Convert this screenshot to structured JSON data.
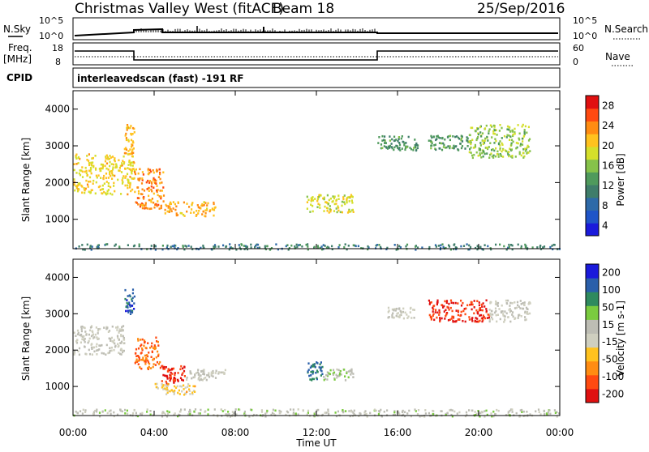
{
  "header": {
    "station": "Christmas Valley West (fitACF)",
    "beam": "Beam 18",
    "date": "25/Sep/2016"
  },
  "noise_panel": {
    "left_label": "N.Sky",
    "right_label": "N.Search",
    "left_ticks": [
      "10^5",
      "10^0"
    ],
    "right_ticks": [
      "10^5",
      "10^0"
    ]
  },
  "freq_panel": {
    "left_label_1": "Freq.",
    "left_label_2": "[MHz]",
    "right_label": "Nave",
    "left_ticks": [
      "18",
      "8"
    ],
    "right_ticks": [
      "60",
      "0"
    ],
    "cpid_label": "CPID",
    "cpid_text": "interleavedscan (fast) -191 RF"
  },
  "colors": {
    "power_scale": [
      "#1a1adb",
      "#1f55c8",
      "#2e6aa8",
      "#3f7d6a",
      "#4f9a5c",
      "#86c24a",
      "#d5df2b",
      "#ffc21e",
      "#ff8c12",
      "#ff4a10",
      "#e01010"
    ],
    "velocity_scale": [
      "#e01010",
      "#ff4a10",
      "#ff8c12",
      "#ffc21e",
      "#cfcfbf",
      "#bdbdb4",
      "#7acb3f",
      "#2f8a5f",
      "#2a5faa",
      "#1a1adb"
    ]
  },
  "chart_data": [
    {
      "type": "heatmap",
      "panel": "power",
      "ylabel": "Slant Range [km]",
      "xlabel": "Time UT",
      "x_ticks": [
        "00:00",
        "04:00",
        "08:00",
        "12:00",
        "16:00",
        "20:00",
        "00:00"
      ],
      "y_ticks": [
        "1000",
        "2000",
        "3000",
        "4000"
      ],
      "ylim": [
        200,
        4500
      ],
      "xlim": [
        0,
        24
      ],
      "colorbar_label": "Power [dB]",
      "colorbar_ticks": [
        "28",
        "24",
        "20",
        "16",
        "12",
        "8",
        "4"
      ],
      "colorbar_range": [
        0,
        31
      ],
      "regions": [
        {
          "t0": 0.0,
          "t1": 3.0,
          "r0": 1700,
          "r1": 2800,
          "level": 20
        },
        {
          "t0": 2.5,
          "t1": 3.0,
          "r0": 2800,
          "r1": 3600,
          "level": 22
        },
        {
          "t0": 3.0,
          "t1": 4.5,
          "r0": 1300,
          "r1": 2400,
          "level": 24
        },
        {
          "t0": 4.5,
          "t1": 7.0,
          "r0": 1100,
          "r1": 1500,
          "level": 22
        },
        {
          "t0": 11.5,
          "t1": 13.8,
          "r0": 1200,
          "r1": 1700,
          "level": 18
        },
        {
          "t0": 15.0,
          "t1": 17.0,
          "r0": 2900,
          "r1": 3300,
          "level": 12
        },
        {
          "t0": 17.5,
          "t1": 19.5,
          "r0": 2900,
          "r1": 3300,
          "level": 12
        },
        {
          "t0": 19.5,
          "t1": 22.5,
          "r0": 2700,
          "r1": 3600,
          "level": 16
        },
        {
          "t0": 0.0,
          "t1": 24.0,
          "r0": 200,
          "r1": 350,
          "level": 10
        }
      ]
    },
    {
      "type": "heatmap",
      "panel": "velocity",
      "ylabel": "Slant Range [km]",
      "xlabel": "Time UT",
      "x_ticks": [
        "00:00",
        "04:00",
        "08:00",
        "12:00",
        "16:00",
        "20:00",
        "00:00"
      ],
      "y_ticks": [
        "1000",
        "2000",
        "3000",
        "4000"
      ],
      "ylim": [
        200,
        4500
      ],
      "xlim": [
        0,
        24
      ],
      "colorbar_label": "Velocity [m s-1]",
      "colorbar_ticks": [
        "200",
        "100",
        "50",
        "15",
        "-15",
        "-50",
        "-100",
        "-200"
      ],
      "colorbar_range": [
        -250,
        250
      ],
      "regions": [
        {
          "t0": 0.0,
          "t1": 2.5,
          "r0": 1900,
          "r1": 2700,
          "level": 0
        },
        {
          "t0": 2.5,
          "t1": 3.0,
          "r0": 3000,
          "r1": 3700,
          "level": 180
        },
        {
          "t0": 3.0,
          "t1": 4.3,
          "r0": 1500,
          "r1": 2400,
          "level": -150
        },
        {
          "t0": 4.3,
          "t1": 5.5,
          "r0": 1100,
          "r1": 1600,
          "level": -220
        },
        {
          "t0": 5.5,
          "t1": 7.5,
          "r0": 1200,
          "r1": 1500,
          "level": 0
        },
        {
          "t0": 4.0,
          "t1": 6.0,
          "r0": 800,
          "r1": 1100,
          "level": -60
        },
        {
          "t0": 11.5,
          "t1": 12.3,
          "r0": 1200,
          "r1": 1700,
          "level": 150
        },
        {
          "t0": 12.3,
          "t1": 13.8,
          "r0": 1200,
          "r1": 1500,
          "level": 40
        },
        {
          "t0": 15.5,
          "t1": 16.8,
          "r0": 2900,
          "r1": 3200,
          "level": 0
        },
        {
          "t0": 17.5,
          "t1": 20.5,
          "r0": 2800,
          "r1": 3400,
          "level": -200
        },
        {
          "t0": 20.5,
          "t1": 22.5,
          "r0": 2800,
          "r1": 3400,
          "level": 0
        },
        {
          "t0": 0.0,
          "t1": 24.0,
          "r0": 200,
          "r1": 400,
          "level": 20
        }
      ]
    }
  ]
}
